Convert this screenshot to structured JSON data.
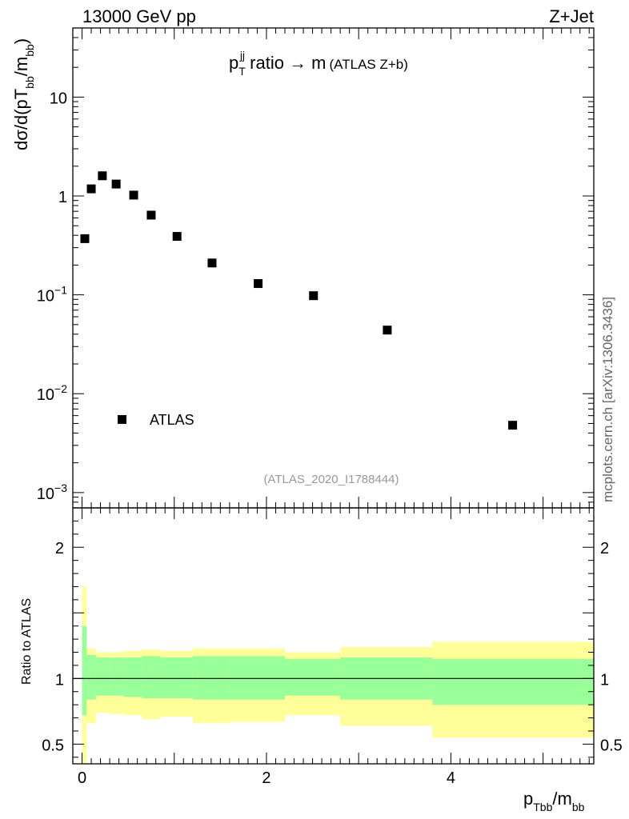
{
  "header": {
    "energy_label": "13000 GeV pp",
    "process_label": "Z+Jet"
  },
  "watermark": "mcplots.cern.ch [arXiv:1306.3436]",
  "colors": {
    "band_outer": "#ffff99",
    "band_inner": "#99ff99",
    "marker": "#000000",
    "analysis_id_text": "#999999"
  },
  "chart_data": [
    {
      "type": "scatter",
      "panel": "main",
      "title": {
        "p": "p",
        "sub": "T",
        "sup": "jj",
        "rest": " ratio → m",
        "note": "(ATLAS Z+b)"
      },
      "ylabel": {
        "a": "dσ/d(pT",
        "sub1": "bb",
        "b": "/m",
        "sub2": "bb",
        "c": ")"
      },
      "y_scale": "log",
      "ylim": [
        0.0007,
        50
      ],
      "xlim": [
        -0.1,
        5.55
      ],
      "y_ticks": [
        {
          "value": 0.001,
          "base": "10",
          "exp": "−3"
        },
        {
          "value": 0.01,
          "base": "10",
          "exp": "−2"
        },
        {
          "value": 0.1,
          "base": "10",
          "exp": "−1"
        },
        {
          "value": 1,
          "base": "1",
          "exp": ""
        },
        {
          "value": 10,
          "base": "10",
          "exp": ""
        }
      ],
      "series": [
        {
          "name": "ATLAS",
          "marker": "square",
          "x": [
            0.03,
            0.1,
            0.22,
            0.37,
            0.56,
            0.75,
            1.03,
            1.41,
            1.91,
            2.51,
            3.31,
            4.67
          ],
          "y": [
            0.37,
            1.18,
            1.6,
            1.32,
            1.02,
            0.64,
            0.39,
            0.21,
            0.13,
            0.098,
            0.044,
            0.0048
          ]
        }
      ],
      "legend": {
        "entry": "ATLAS",
        "position": "bottom-left"
      },
      "analysis_id": "(ATLAS_2020_I1788444)"
    },
    {
      "type": "area",
      "panel": "ratio",
      "ylabel": "Ratio to ATLAS",
      "xlabel": {
        "p": "p",
        "sub": "Tbb",
        "rest": "/m",
        "sub2": "bb"
      },
      "ylim": [
        0.35,
        2.3
      ],
      "xlim": [
        -0.1,
        5.55
      ],
      "x_ticks": [
        {
          "value": 0,
          "label": "0"
        },
        {
          "value": 2,
          "label": "2"
        },
        {
          "value": 4,
          "label": "4"
        }
      ],
      "y_ticks": [
        {
          "value": 0.5,
          "label": "0.5"
        },
        {
          "value": 1,
          "label": "1"
        },
        {
          "value": 2,
          "label": "2"
        }
      ],
      "reference_line": 1.0,
      "bins": [
        {
          "x0": 0.0,
          "x1": 0.05,
          "outer": [
            0.35,
            1.7
          ],
          "inner": [
            0.72,
            1.4
          ]
        },
        {
          "x0": 0.05,
          "x1": 0.15,
          "outer": [
            0.66,
            1.23
          ],
          "inner": [
            0.84,
            1.18
          ]
        },
        {
          "x0": 0.15,
          "x1": 0.3,
          "outer": [
            0.74,
            1.2
          ],
          "inner": [
            0.87,
            1.16
          ]
        },
        {
          "x0": 0.3,
          "x1": 0.45,
          "outer": [
            0.73,
            1.2
          ],
          "inner": [
            0.87,
            1.16
          ]
        },
        {
          "x0": 0.45,
          "x1": 0.65,
          "outer": [
            0.72,
            1.21
          ],
          "inner": [
            0.86,
            1.16
          ]
        },
        {
          "x0": 0.65,
          "x1": 0.85,
          "outer": [
            0.69,
            1.22
          ],
          "inner": [
            0.85,
            1.17
          ]
        },
        {
          "x0": 0.85,
          "x1": 1.2,
          "outer": [
            0.71,
            1.21
          ],
          "inner": [
            0.85,
            1.16
          ]
        },
        {
          "x0": 1.2,
          "x1": 1.6,
          "outer": [
            0.66,
            1.23
          ],
          "inner": [
            0.84,
            1.17
          ]
        },
        {
          "x0": 1.6,
          "x1": 2.2,
          "outer": [
            0.67,
            1.23
          ],
          "inner": [
            0.84,
            1.17
          ]
        },
        {
          "x0": 2.2,
          "x1": 2.8,
          "outer": [
            0.72,
            1.2
          ],
          "inner": [
            0.87,
            1.15
          ]
        },
        {
          "x0": 2.8,
          "x1": 3.8,
          "outer": [
            0.64,
            1.24
          ],
          "inner": [
            0.84,
            1.16
          ]
        },
        {
          "x0": 3.8,
          "x1": 5.55,
          "outer": [
            0.55,
            1.28
          ],
          "inner": [
            0.8,
            1.15
          ]
        }
      ]
    }
  ]
}
